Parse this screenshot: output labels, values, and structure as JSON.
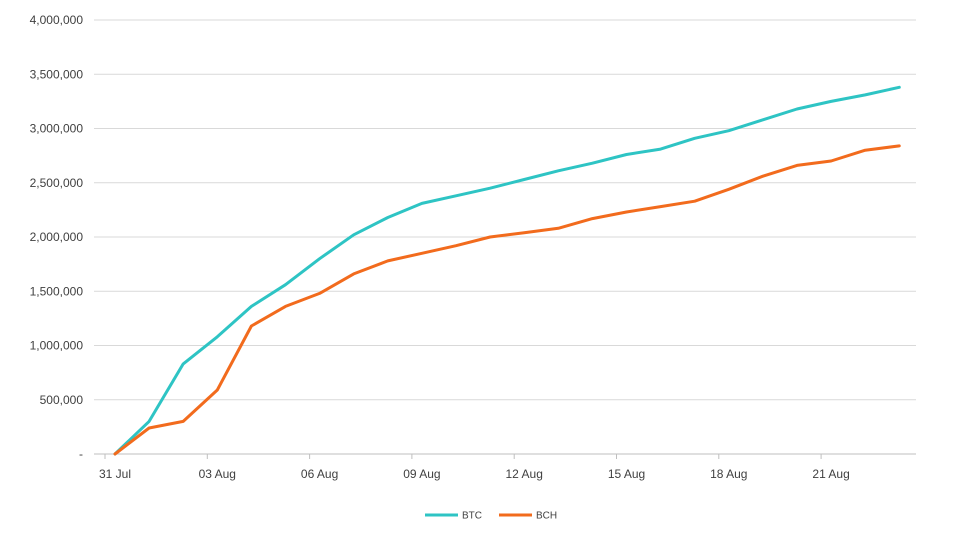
{
  "chart_data": {
    "type": "line",
    "title": "",
    "xlabel": "",
    "ylabel": "",
    "x": [
      "31 Jul",
      "01 Aug",
      "02 Aug",
      "03 Aug",
      "04 Aug",
      "05 Aug",
      "06 Aug",
      "07 Aug",
      "08 Aug",
      "09 Aug",
      "10 Aug",
      "11 Aug",
      "12 Aug",
      "13 Aug",
      "14 Aug",
      "15 Aug",
      "16 Aug",
      "17 Aug",
      "18 Aug",
      "19 Aug",
      "20 Aug",
      "21 Aug",
      "22 Aug",
      "23 Aug"
    ],
    "x_tick_labels": [
      "31 Jul",
      "03 Aug",
      "06 Aug",
      "09 Aug",
      "12 Aug",
      "15 Aug",
      "18 Aug",
      "21 Aug"
    ],
    "ylim": [
      0,
      4000000
    ],
    "y_ticks": [
      0,
      500000,
      1000000,
      1500000,
      2000000,
      2500000,
      3000000,
      3500000,
      4000000
    ],
    "y_tick_labels": [
      "-",
      "500,000",
      "1,000,000",
      "1,500,000",
      "2,000,000",
      "2,500,000",
      "3,000,000",
      "3,500,000",
      "4,000,000"
    ],
    "grid": "horizontal",
    "legend_position": "bottom",
    "series": [
      {
        "name": "BTC",
        "color": "#2EC4C4",
        "values": [
          0,
          300000,
          830000,
          1080000,
          1360000,
          1560000,
          1800000,
          2020000,
          2180000,
          2310000,
          2380000,
          2450000,
          2530000,
          2610000,
          2680000,
          2760000,
          2810000,
          2910000,
          2980000,
          3080000,
          3180000,
          3250000,
          3310000,
          3380000
        ]
      },
      {
        "name": "BCH",
        "color": "#F26B1D",
        "values": [
          0,
          240000,
          300000,
          590000,
          1180000,
          1360000,
          1480000,
          1660000,
          1780000,
          1850000,
          1920000,
          2000000,
          2040000,
          2080000,
          2170000,
          2230000,
          2280000,
          2330000,
          2440000,
          2560000,
          2660000,
          2700000,
          2800000,
          2840000
        ]
      }
    ]
  }
}
